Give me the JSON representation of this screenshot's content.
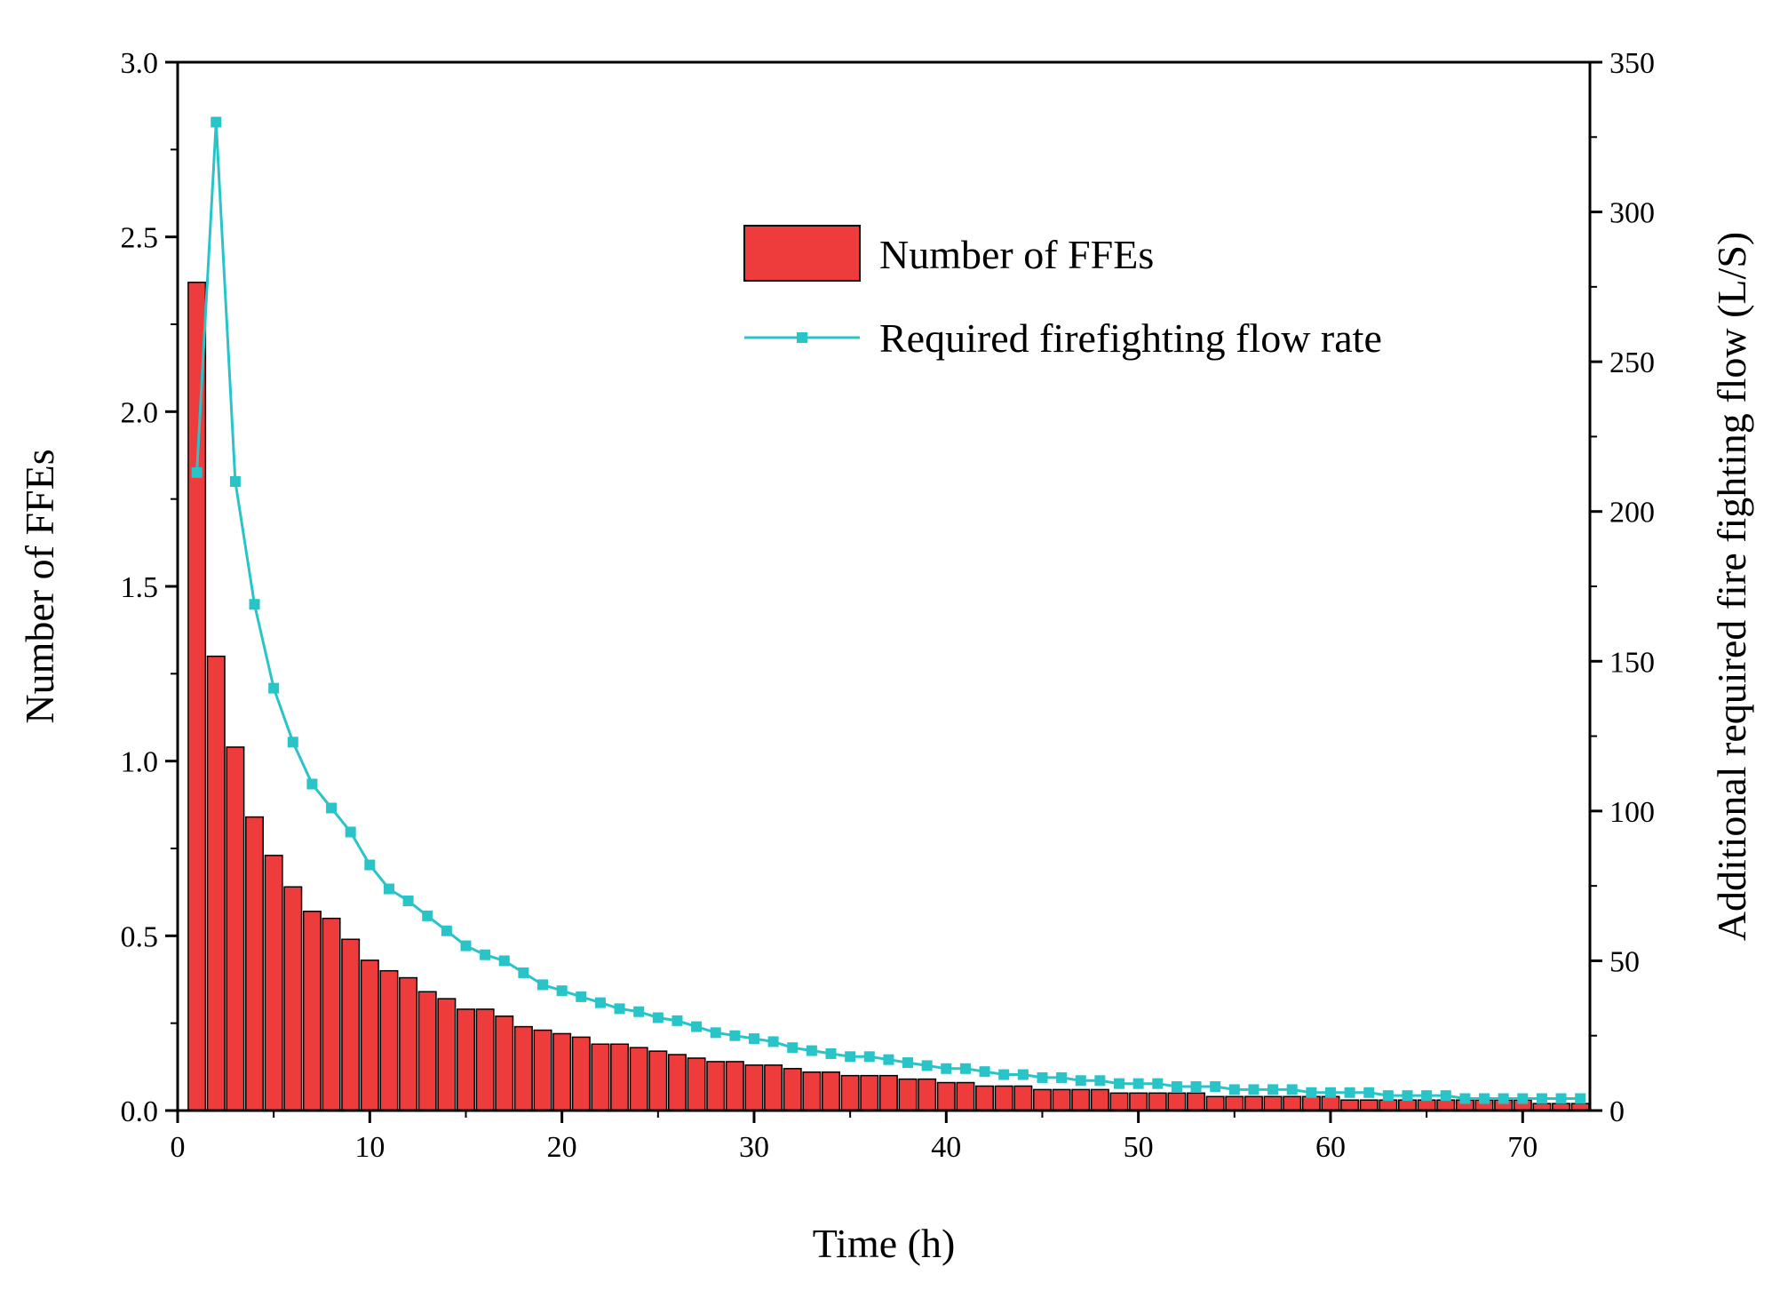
{
  "chart_data": {
    "type": "bar",
    "xlabel": "Time (h)",
    "ylabel": "Number of FFEs",
    "y2label": "Additional required fire fighting flow (L/S)",
    "xlim": [
      0,
      73.5
    ],
    "ylim": [
      0,
      3.0
    ],
    "y2lim": [
      0,
      350
    ],
    "xticks": [
      "0",
      "10",
      "20",
      "30",
      "40",
      "50",
      "60",
      "70"
    ],
    "yticks": [
      "0.0",
      "0.5",
      "1.0",
      "1.5",
      "2.0",
      "2.5",
      "3.0"
    ],
    "y2ticks": [
      "0",
      "50",
      "100",
      "150",
      "200",
      "250",
      "300",
      "350"
    ],
    "grid": false,
    "legend_position": "top-right",
    "colors": {
      "bar_fill": "#ee3b3b",
      "bar_edge": "#000000",
      "line": "#29c4c8"
    },
    "x": [
      1,
      2,
      3,
      4,
      5,
      6,
      7,
      8,
      9,
      10,
      11,
      12,
      13,
      14,
      15,
      16,
      17,
      18,
      19,
      20,
      21,
      22,
      23,
      24,
      25,
      26,
      27,
      28,
      29,
      30,
      31,
      32,
      33,
      34,
      35,
      36,
      37,
      38,
      39,
      40,
      41,
      42,
      43,
      44,
      45,
      46,
      47,
      48,
      49,
      50,
      51,
      52,
      53,
      54,
      55,
      56,
      57,
      58,
      59,
      60,
      61,
      62,
      63,
      64,
      65,
      66,
      67,
      68,
      69,
      70,
      71,
      72,
      73
    ],
    "series": [
      {
        "name": "Number of FFEs",
        "kind": "bar",
        "axis": "left",
        "values": [
          2.37,
          1.3,
          1.04,
          0.84,
          0.73,
          0.64,
          0.57,
          0.55,
          0.49,
          0.43,
          0.4,
          0.38,
          0.34,
          0.32,
          0.29,
          0.29,
          0.27,
          0.24,
          0.23,
          0.22,
          0.21,
          0.19,
          0.19,
          0.18,
          0.17,
          0.16,
          0.15,
          0.14,
          0.14,
          0.13,
          0.13,
          0.12,
          0.11,
          0.11,
          0.1,
          0.1,
          0.1,
          0.09,
          0.09,
          0.08,
          0.08,
          0.07,
          0.07,
          0.07,
          0.06,
          0.06,
          0.06,
          0.06,
          0.05,
          0.05,
          0.05,
          0.05,
          0.05,
          0.04,
          0.04,
          0.04,
          0.04,
          0.04,
          0.04,
          0.04,
          0.03,
          0.03,
          0.03,
          0.03,
          0.03,
          0.03,
          0.03,
          0.03,
          0.03,
          0.03,
          0.02,
          0.02,
          0.02
        ]
      },
      {
        "name": "Required firefighting flow rate",
        "kind": "line",
        "axis": "right",
        "values": [
          213,
          330,
          210,
          169,
          141,
          123,
          109,
          101,
          93,
          82,
          74,
          70,
          65,
          60,
          55,
          52,
          50,
          46,
          42,
          40,
          38,
          36,
          34,
          33,
          31,
          30,
          28,
          26,
          25,
          24,
          23,
          21,
          20,
          19,
          18,
          18,
          17,
          16,
          15,
          14,
          14,
          13,
          12,
          12,
          11,
          11,
          10,
          10,
          9,
          9,
          9,
          8,
          8,
          8,
          7,
          7,
          7,
          7,
          6,
          6,
          6,
          6,
          5,
          5,
          5,
          5,
          4,
          4,
          4,
          4,
          4,
          4,
          4
        ]
      }
    ]
  }
}
